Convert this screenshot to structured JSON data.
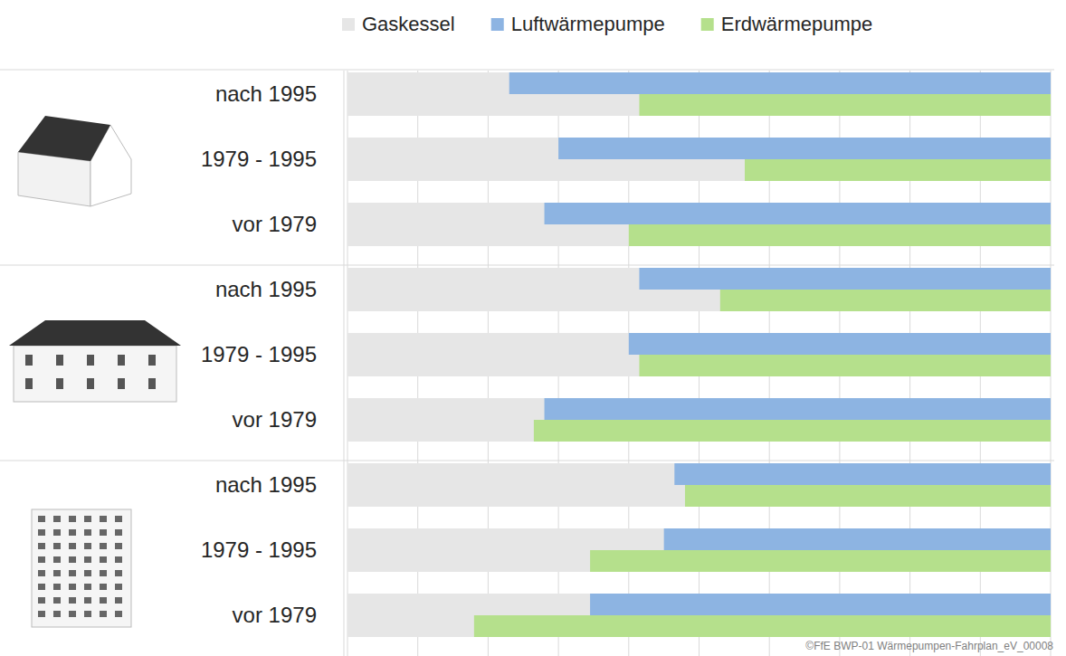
{
  "chart_data": {
    "type": "bar",
    "orientation": "horizontal",
    "categories": [
      "nach 1995",
      "1979 - 1995",
      "vor 1979",
      "nach 1995",
      "1979 - 1995",
      "vor 1979",
      "nach 1995",
      "1979 - 1995",
      "vor 1979"
    ],
    "series": [
      {
        "name": "Gaskessel",
        "color": "#e6e6e6",
        "values": [
          100,
          100,
          100,
          100,
          100,
          100,
          100,
          100,
          100
        ]
      },
      {
        "name": "Luftwärmepumpe",
        "color": "#8db4e2",
        "values": [
          77,
          70,
          72,
          58.5,
          60,
          72,
          53.5,
          55,
          65.5
        ]
      },
      {
        "name": "Erdwärmepumpe",
        "color": "#b5e08c",
        "values": [
          58.5,
          43.5,
          60,
          47,
          58.5,
          73.5,
          52,
          65.5,
          82
        ]
      }
    ],
    "xlim": [
      0,
      100
    ],
    "xticks": [
      0,
      10,
      20,
      30,
      40,
      50,
      60,
      70,
      80,
      90,
      100
    ],
    "grid": true,
    "legend": "top",
    "tick_labels": false,
    "source": "©FfE BWP-01 Wärmepumpen-Fahrplan_eV_00008"
  }
}
